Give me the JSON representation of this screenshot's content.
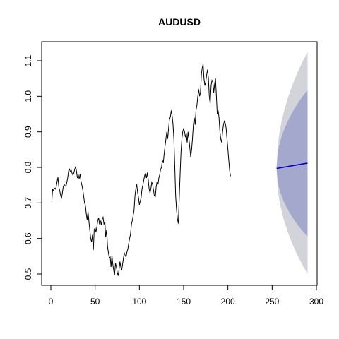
{
  "chart_data": {
    "type": "line",
    "title": "AUDUSD",
    "xlabel": "",
    "ylabel": "",
    "xlim": [
      0,
      300
    ],
    "ylim": [
      0.5,
      1.1
    ],
    "x_ticks": [
      0,
      50,
      100,
      150,
      200,
      250,
      300
    ],
    "y_ticks": [
      0.5,
      0.6,
      0.7,
      0.8,
      0.9,
      1.0,
      1.1
    ],
    "y_tick_labels": [
      "0.5",
      "0.6",
      "0.7",
      "0.8",
      "0.9",
      "1.0",
      "1.1"
    ],
    "grid": false,
    "colors": {
      "series": "#000000",
      "forecast": "#0000cc",
      "band_80": "#a3a8cc",
      "band_95": "#d3d3da"
    },
    "series": [
      {
        "x_start": 1,
        "values": [
          0.703,
          0.738,
          0.735,
          0.742,
          0.739,
          0.744,
          0.76,
          0.772,
          0.745,
          0.735,
          0.722,
          0.712,
          0.728,
          0.745,
          0.752,
          0.749,
          0.746,
          0.758,
          0.77,
          0.79,
          0.795,
          0.788,
          0.792,
          0.783,
          0.778,
          0.784,
          0.795,
          0.802,
          0.789,
          0.77,
          0.778,
          0.768,
          0.781,
          0.762,
          0.75,
          0.738,
          0.72,
          0.701,
          0.693,
          0.67,
          0.652,
          0.676,
          0.648,
          0.625,
          0.6,
          0.59,
          0.61,
          0.568,
          0.625,
          0.63,
          0.618,
          0.633,
          0.651,
          0.658,
          0.64,
          0.65,
          0.638,
          0.655,
          0.66,
          0.64,
          0.646,
          0.603,
          0.625,
          0.578,
          0.56,
          0.545,
          0.548,
          0.52,
          0.552,
          0.528,
          0.51,
          0.497,
          0.53,
          0.521,
          0.505,
          0.495,
          0.512,
          0.535,
          0.52,
          0.51,
          0.527,
          0.545,
          0.56,
          0.552,
          0.548,
          0.562,
          0.57,
          0.587,
          0.6,
          0.612,
          0.64,
          0.65,
          0.665,
          0.68,
          0.72,
          0.74,
          0.752,
          0.73,
          0.715,
          0.695,
          0.705,
          0.715,
          0.74,
          0.75,
          0.765,
          0.778,
          0.782,
          0.77,
          0.785,
          0.765,
          0.74,
          0.728,
          0.74,
          0.758,
          0.752,
          0.735,
          0.72,
          0.718,
          0.745,
          0.76,
          0.752,
          0.77,
          0.78,
          0.795,
          0.8,
          0.82,
          0.812,
          0.838,
          0.86,
          0.88,
          0.9,
          0.88,
          0.91,
          0.935,
          0.942,
          0.96,
          0.945,
          0.92,
          0.88,
          0.8,
          0.72,
          0.68,
          0.655,
          0.642,
          0.71,
          0.78,
          0.84,
          0.88,
          0.9,
          0.91,
          0.9,
          0.885,
          0.895,
          0.87,
          0.9,
          0.88,
          0.855,
          0.83,
          0.85,
          0.88,
          0.92,
          0.94,
          0.92,
          0.96,
          0.975,
          1.0,
          1.02,
          1.0,
          1.01,
          1.06,
          1.08,
          1.09,
          1.05,
          1.03,
          1.04,
          1.06,
          1.075,
          1.05,
          1.0,
          0.98,
          1.03,
          1.045,
          1.04,
          1.01,
          1.035,
          1.05,
          1.0,
          0.95,
          0.96,
          0.94,
          0.9,
          0.88,
          0.87,
          0.9,
          0.92,
          0.93,
          0.925,
          0.91,
          0.88,
          0.85,
          0.82,
          0.79,
          0.775
        ]
      }
    ],
    "forecast": {
      "x": [
        255,
        290
      ],
      "mean": [
        0.797,
        0.812
      ],
      "lo80": [
        0.797,
        0.605
      ],
      "hi80": [
        0.797,
        1.018
      ],
      "lo95": [
        0.797,
        0.5
      ],
      "hi95": [
        0.797,
        1.125
      ]
    }
  }
}
